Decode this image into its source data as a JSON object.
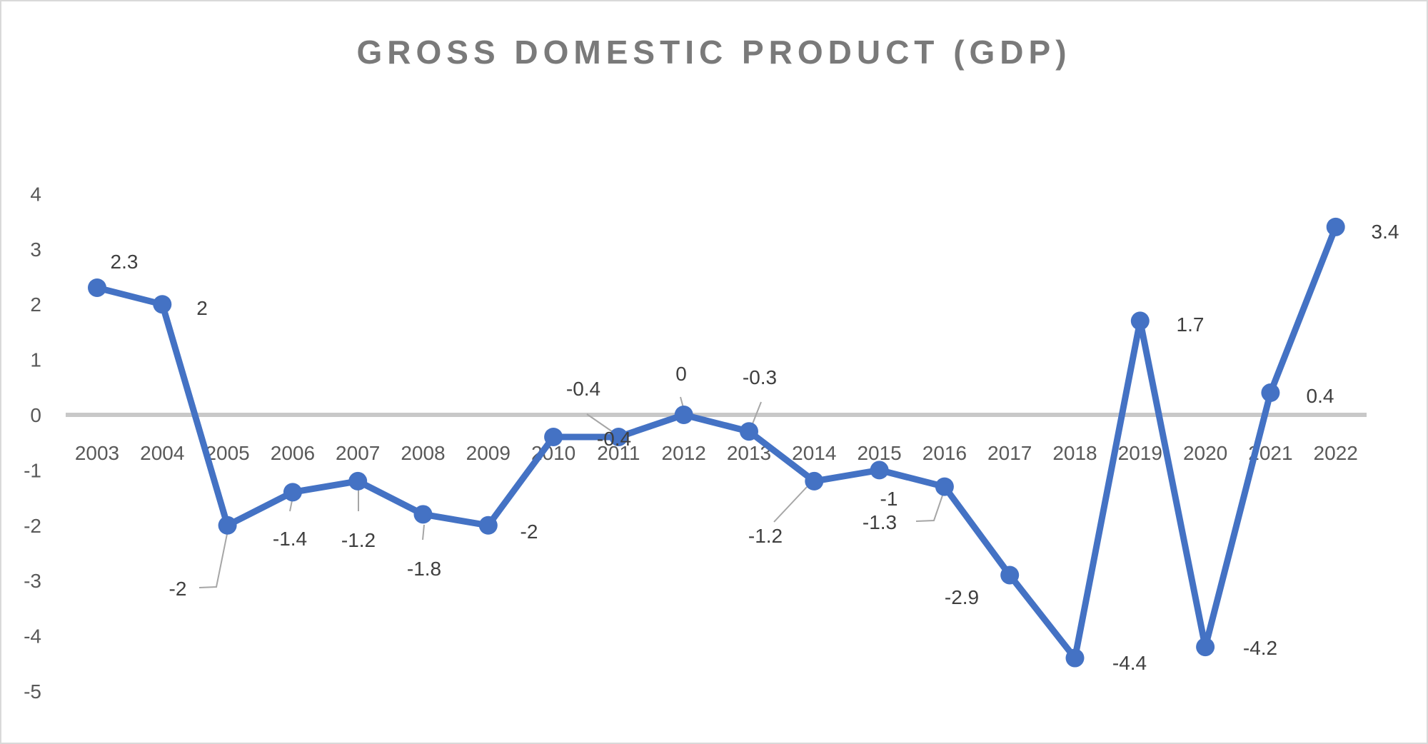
{
  "page": {
    "background": "#FFFFFF",
    "border_color": "#D9D9D9"
  },
  "title": {
    "text": "GROSS DOMESTIC PRODUCT (GDP)",
    "color": "#7A7A7A"
  },
  "chart_data": {
    "type": "line",
    "title": "GROSS DOMESTIC PRODUCT (GDP)",
    "categories": [
      "2003",
      "2004",
      "2005",
      "2006",
      "2007",
      "2008",
      "2009",
      "2010",
      "2011",
      "2012",
      "2013",
      "2014",
      "2015",
      "2016",
      "2017",
      "2018",
      "2019",
      "2020",
      "2021",
      "2022"
    ],
    "series": [
      {
        "name": "GDP",
        "color": "#4472C4",
        "values": [
          2.3,
          2,
          -2,
          -1.4,
          -1.2,
          -1.8,
          -2,
          -0.4,
          -0.4,
          0,
          -0.3,
          -1.2,
          -1,
          -1.3,
          -2.9,
          -4.4,
          1.7,
          -4.2,
          0.4,
          3.4
        ]
      }
    ],
    "data_labels": [
      "2.3",
      "2",
      "-2",
      "-1.4",
      "-1.2",
      "-1.8",
      "-2",
      "-0.4",
      "-0.4",
      "0",
      "-0.3",
      "-1.2",
      "-1",
      "-1.3",
      "-2.9",
      "-4.4",
      "1.7",
      "-4.2",
      "0.4",
      "3.4"
    ],
    "y_axis": {
      "ticks": [
        "4",
        "3",
        "2",
        "1",
        "0",
        "-1",
        "-2",
        "-3",
        "-4",
        "-5"
      ],
      "min": -5,
      "max": 4,
      "text_color": "#595959"
    },
    "x_axis": {
      "text_color": "#595959"
    },
    "gridlines": {
      "zero_line_only": true,
      "zero_line_color": "#C8C8C8"
    },
    "style": {
      "line_color": "#4472C4",
      "marker": "circle",
      "marker_color": "#4472C4",
      "data_label_color": "#3F3F3F",
      "leader_line_color": "#A6A6A6"
    },
    "legend": "none"
  }
}
